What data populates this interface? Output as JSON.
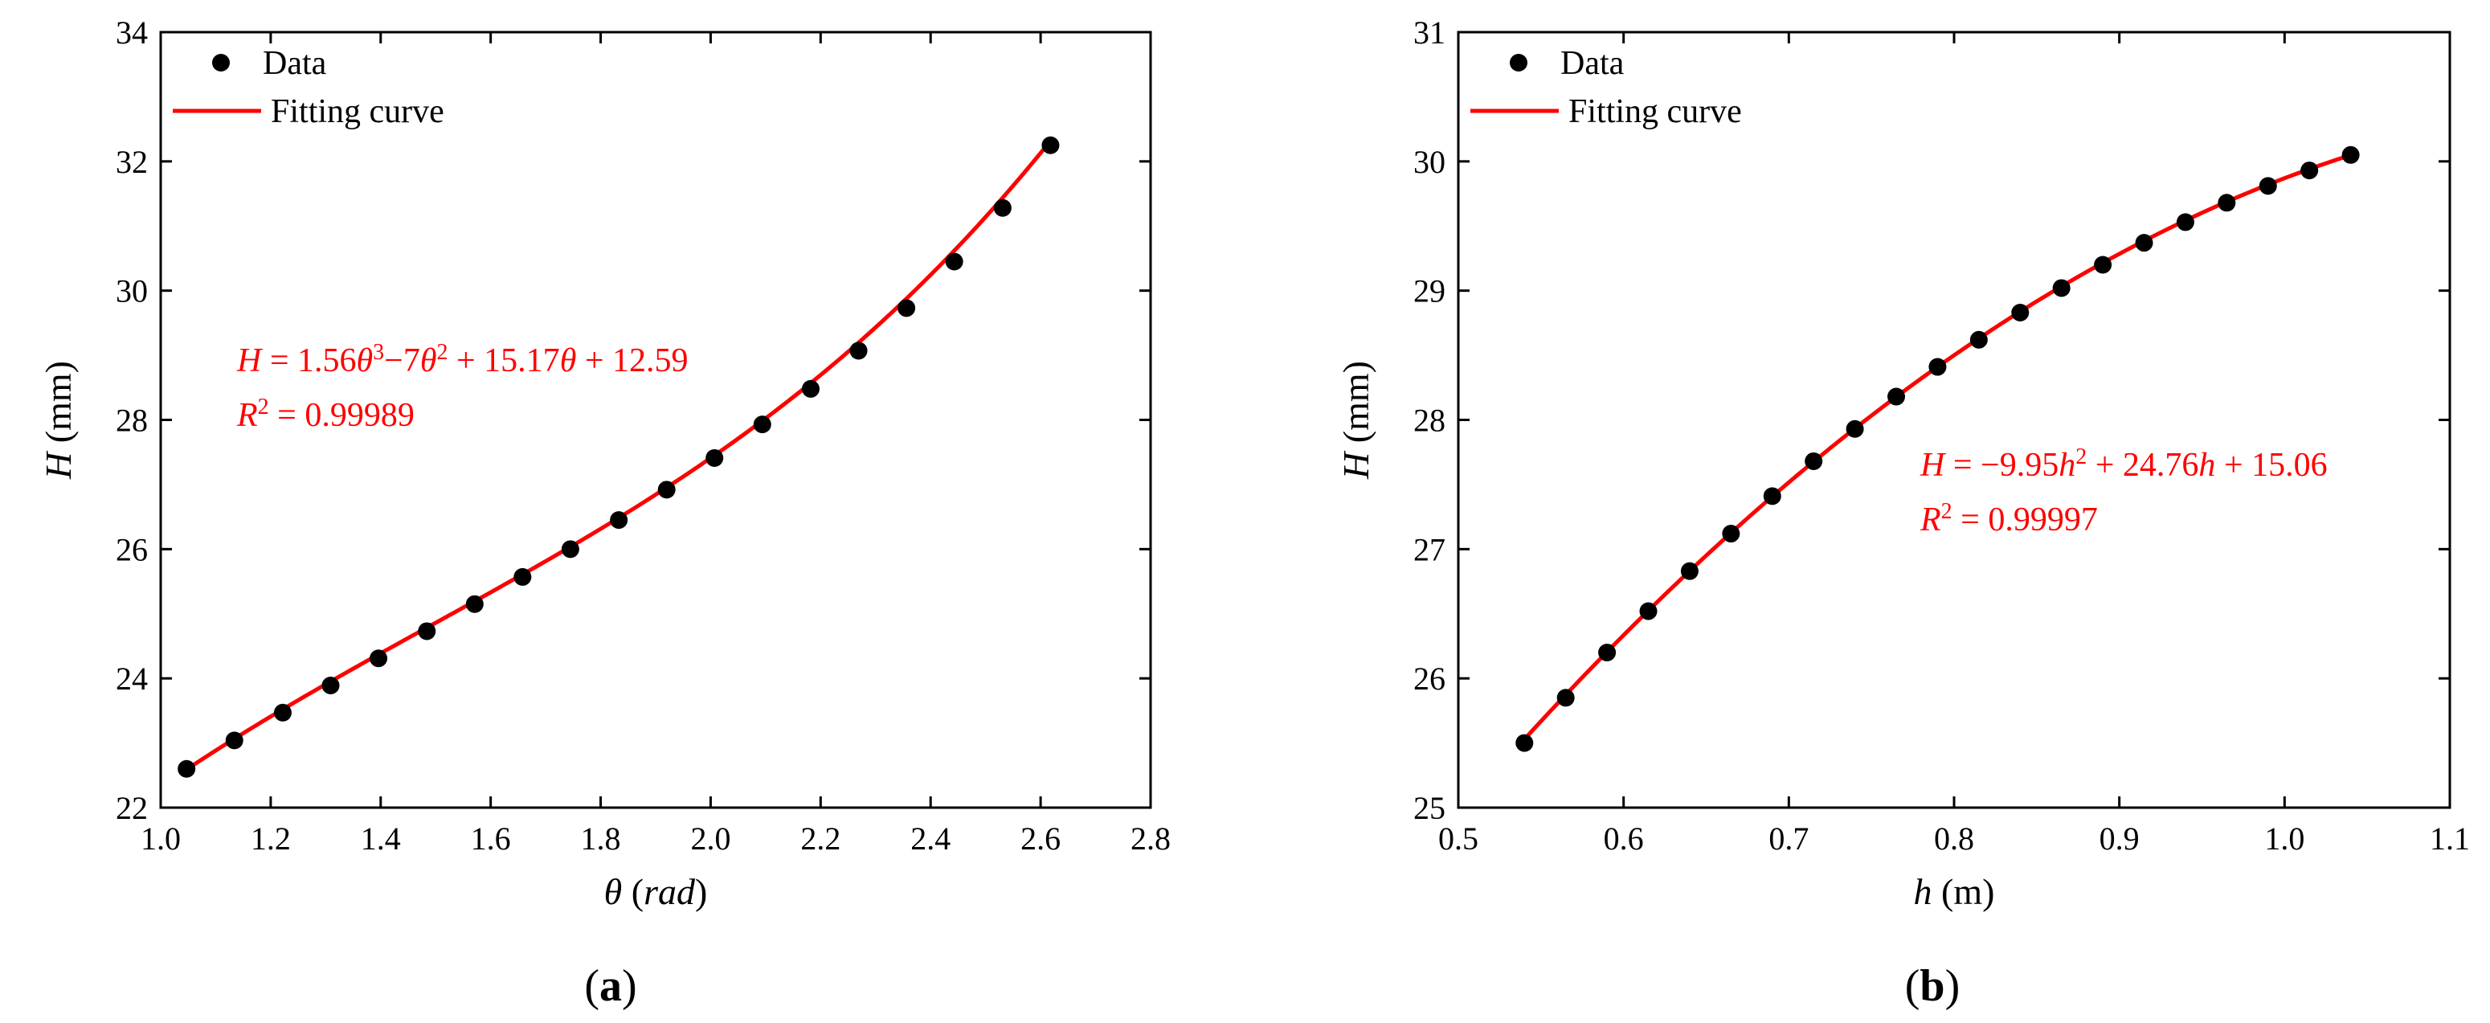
{
  "colors": {
    "data_marker": "#000000",
    "fit_line": "#ff0000",
    "annotation": "#ff0000",
    "axes": "#000000"
  },
  "chart_data": [
    {
      "type": "scatter",
      "panel_label": "a",
      "xlabel": {
        "var": "θ",
        "unit": "rad"
      },
      "ylabel": {
        "var": "H",
        "unit": "(mm)"
      },
      "xlim": [
        1.0,
        2.8
      ],
      "ylim": [
        22,
        34
      ],
      "xticks": [
        "1.0",
        "1.2",
        "1.4",
        "1.6",
        "1.8",
        "2.0",
        "2.2",
        "2.4",
        "2.6",
        "2.8"
      ],
      "yticks": [
        "22",
        "24",
        "26",
        "28",
        "30",
        "32",
        "34"
      ],
      "legend": {
        "data_label": "Data",
        "fit_label": "Fitting curve",
        "placement": "top-left"
      },
      "equation": {
        "line1": "H = 1.56θ³−7θ² + 15.17θ + 12.59",
        "line2": "R² = 0.99989"
      },
      "fit": {
        "kind": "poly",
        "coeffs": [
          12.59,
          15.17,
          -7,
          1.56
        ],
        "range": [
          1.047,
          2.618
        ]
      },
      "series": [
        {
          "name": "Data",
          "x": [
            1.047,
            1.134,
            1.222,
            1.309,
            1.396,
            1.484,
            1.571,
            1.658,
            1.745,
            1.833,
            1.92,
            2.007,
            2.094,
            2.182,
            2.269,
            2.356,
            2.443,
            2.531,
            2.618
          ],
          "y": [
            22.6,
            23.04,
            23.47,
            23.89,
            24.31,
            24.73,
            25.15,
            25.57,
            26.0,
            26.45,
            26.92,
            27.41,
            27.93,
            28.48,
            29.07,
            29.73,
            30.45,
            31.28,
            32.25
          ]
        }
      ]
    },
    {
      "type": "scatter",
      "panel_label": "b",
      "xlabel": {
        "var": "h",
        "unit": "(m)"
      },
      "ylabel": {
        "var": "H",
        "unit": "(mm)"
      },
      "xlim": [
        0.5,
        1.1
      ],
      "ylim": [
        25,
        31
      ],
      "xticks": [
        "0.5",
        "0.6",
        "0.7",
        "0.8",
        "0.9",
        "1.0",
        "1.1"
      ],
      "yticks": [
        "25",
        "26",
        "27",
        "28",
        "29",
        "30",
        "31"
      ],
      "legend": {
        "data_label": "Data",
        "fit_label": "Fitting curve",
        "placement": "top-left"
      },
      "equation": {
        "line1": "H = −9.95h² + 24.76h + 15.06",
        "line2": "R² = 0.99997"
      },
      "fit": {
        "kind": "poly",
        "coeffs": [
          15.06,
          24.76,
          -9.95
        ],
        "range": [
          0.54,
          1.04
        ]
      },
      "series": [
        {
          "name": "Data",
          "x": [
            0.54,
            0.565,
            0.59,
            0.615,
            0.64,
            0.665,
            0.69,
            0.715,
            0.74,
            0.765,
            0.79,
            0.815,
            0.84,
            0.865,
            0.89,
            0.915,
            0.94,
            0.965,
            0.99,
            1.015,
            1.04
          ],
          "y": [
            25.5,
            25.85,
            26.2,
            26.52,
            26.83,
            27.12,
            27.41,
            27.68,
            27.93,
            28.18,
            28.41,
            28.62,
            28.83,
            29.02,
            29.2,
            29.37,
            29.53,
            29.68,
            29.81,
            29.93,
            30.05
          ]
        }
      ]
    }
  ]
}
